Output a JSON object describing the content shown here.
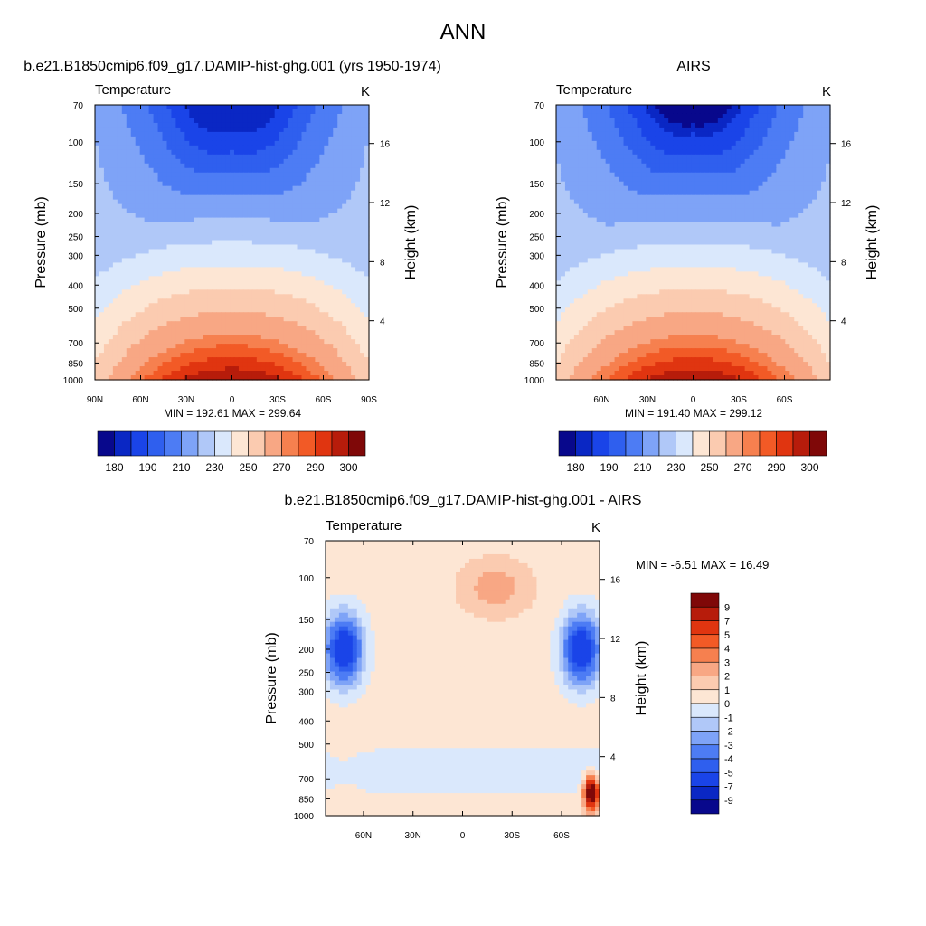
{
  "page_title": "ANN",
  "chart_data": [
    {
      "type": "heatmap",
      "panel_title": "b.e21.B1850cmip6.f09_g17.DAMIP-hist-ghg.001 (yrs 1950-1974)",
      "variable": "Temperature",
      "units": "K",
      "xlabel": "",
      "ylabel": "Pressure (mb)",
      "y2label": "Height (km)",
      "x_ticks": [
        "90N",
        "60N",
        "30N",
        "0",
        "30S",
        "60S",
        "90S"
      ],
      "y_ticks": [
        70,
        100,
        150,
        200,
        250,
        300,
        400,
        500,
        700,
        850,
        1000
      ],
      "y2_ticks": [
        4,
        8,
        12,
        16
      ],
      "ylim": [
        70,
        1000
      ],
      "y_scale": "log",
      "stats": "MIN = 192.61  MAX = 299.64",
      "min": 192.61,
      "max": 299.64,
      "colorbar_labels": [
        "180",
        "190",
        "210",
        "230",
        "250",
        "270",
        "290",
        "300"
      ],
      "contour_levels": [
        180,
        185,
        190,
        200,
        210,
        220,
        230,
        240,
        250,
        260,
        270,
        280,
        285,
        290,
        295,
        300
      ],
      "colors": [
        "#08088c",
        "#0a27c4",
        "#1a44e8",
        "#2f5fee",
        "#4d7cf4",
        "#7ea3f7",
        "#b0c8f8",
        "#dae8fc",
        "#fde6d4",
        "#fbcbb0",
        "#f8a784",
        "#f6804f",
        "#f25a26",
        "#e03510",
        "#b71c0b",
        "#7f0808"
      ],
      "legend": "bottom horizontal colorbar"
    },
    {
      "type": "heatmap",
      "panel_title": "AIRS",
      "variable": "Temperature",
      "units": "K",
      "xlabel": "",
      "ylabel": "Pressure (mb)",
      "y2label": "Height (km)",
      "x_ticks": [
        "60N",
        "30N",
        "0",
        "30S",
        "60S"
      ],
      "y_ticks": [
        70,
        100,
        150,
        200,
        250,
        300,
        400,
        500,
        700,
        850,
        1000
      ],
      "y2_ticks": [
        4,
        8,
        12,
        16
      ],
      "ylim": [
        70,
        1000
      ],
      "y_scale": "log",
      "stats": "MIN = 191.40  MAX = 299.12",
      "min": 191.4,
      "max": 299.12,
      "colorbar_labels": [
        "180",
        "190",
        "210",
        "230",
        "250",
        "270",
        "290",
        "300"
      ],
      "contour_levels": [
        180,
        185,
        190,
        200,
        210,
        220,
        230,
        240,
        250,
        260,
        270,
        280,
        285,
        290,
        295,
        300
      ],
      "colors": [
        "#08088c",
        "#0a27c4",
        "#1a44e8",
        "#2f5fee",
        "#4d7cf4",
        "#7ea3f7",
        "#b0c8f8",
        "#dae8fc",
        "#fde6d4",
        "#fbcbb0",
        "#f8a784",
        "#f6804f",
        "#f25a26",
        "#e03510",
        "#b71c0b",
        "#7f0808"
      ],
      "legend": "bottom horizontal colorbar"
    },
    {
      "type": "heatmap",
      "panel_title": "b.e21.B1850cmip6.f09_g17.DAMIP-hist-ghg.001 - AIRS",
      "variable": "Temperature",
      "units": "K",
      "xlabel": "",
      "ylabel": "Pressure (mb)",
      "y2label": "Height (km)",
      "x_ticks": [
        "60N",
        "30N",
        "0",
        "30S",
        "60S"
      ],
      "y_ticks": [
        70,
        100,
        150,
        200,
        250,
        300,
        400,
        500,
        700,
        850,
        1000
      ],
      "y2_ticks": [
        4,
        8,
        12,
        16
      ],
      "ylim": [
        70,
        1000
      ],
      "y_scale": "log",
      "stats": "MIN =  -6.51  MAX =  16.49",
      "min": -6.51,
      "max": 16.49,
      "colorbar_labels": [
        "9",
        "7",
        "5",
        "4",
        "3",
        "2",
        "1",
        "0",
        "-1",
        "-2",
        "-3",
        "-4",
        "-5",
        "-7",
        "-9"
      ],
      "contour_levels": [
        -9,
        -7,
        -5,
        -4,
        -3,
        -2,
        -1,
        0,
        1,
        2,
        3,
        4,
        5,
        7,
        9
      ],
      "colors": [
        "#08088c",
        "#0a27c4",
        "#1a44e8",
        "#2f5fee",
        "#4d7cf4",
        "#7ea3f7",
        "#b0c8f8",
        "#dae8fc",
        "#fde6d4",
        "#fbcbb0",
        "#f8a784",
        "#f6804f",
        "#f25a26",
        "#e03510",
        "#b71c0b",
        "#7f0808"
      ],
      "legend": "right vertical colorbar"
    }
  ]
}
